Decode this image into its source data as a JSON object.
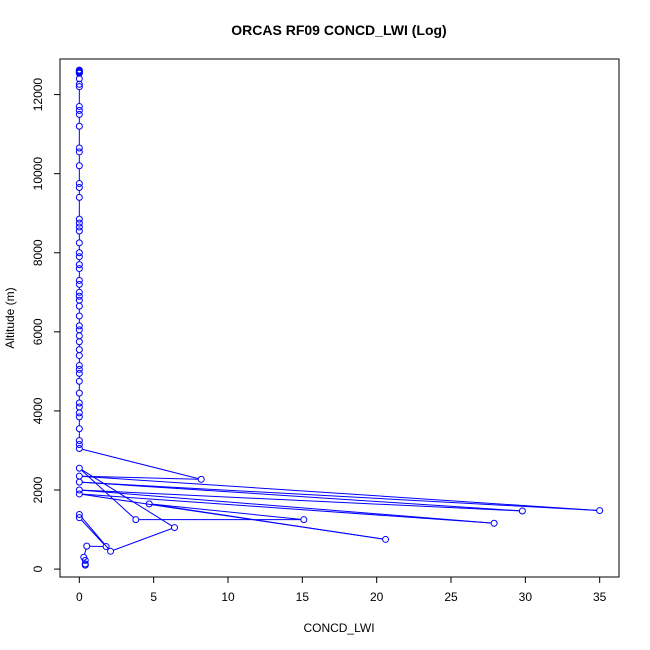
{
  "chart_data": {
    "type": "line",
    "title": "ORCAS RF09 CONCD_LWI (Log)",
    "xlabel": "CONCD_LWI",
    "ylabel": "Altitude (m)",
    "xlim": [
      -1.3,
      36.3
    ],
    "ylim": [
      -200,
      12900
    ],
    "xticks": [
      0,
      5,
      10,
      15,
      20,
      25,
      30,
      35
    ],
    "yticks": [
      0,
      2000,
      4000,
      6000,
      8000,
      10000,
      12000
    ],
    "series_color": "#0000ff",
    "grid": false,
    "legend": "none",
    "series": [
      {
        "values": [
          {
            "x": 0,
            "y": 12620
          },
          {
            "x": 0,
            "y": 12600
          },
          {
            "x": 0,
            "y": 12580
          },
          {
            "x": 0,
            "y": 12560
          },
          {
            "x": 0,
            "y": 12540
          },
          {
            "x": 0,
            "y": 12400
          },
          {
            "x": 0,
            "y": 12260
          },
          {
            "x": 0,
            "y": 12200
          },
          {
            "x": 0,
            "y": 11700
          },
          {
            "x": 0,
            "y": 11600
          },
          {
            "x": 0,
            "y": 11500
          },
          {
            "x": 0,
            "y": 11200
          },
          {
            "x": 0,
            "y": 10650
          },
          {
            "x": 0,
            "y": 10550
          },
          {
            "x": 0,
            "y": 10200
          },
          {
            "x": 0,
            "y": 9750
          },
          {
            "x": 0,
            "y": 9650
          },
          {
            "x": 0,
            "y": 9400
          },
          {
            "x": 0,
            "y": 8850
          },
          {
            "x": 0,
            "y": 8750
          },
          {
            "x": 0,
            "y": 8650
          },
          {
            "x": 0,
            "y": 8550
          },
          {
            "x": 0,
            "y": 8250
          },
          {
            "x": 0,
            "y": 8000
          },
          {
            "x": 0,
            "y": 7900
          },
          {
            "x": 0,
            "y": 7700
          },
          {
            "x": 0,
            "y": 7600
          },
          {
            "x": 0,
            "y": 7300
          },
          {
            "x": 0,
            "y": 7200
          },
          {
            "x": 0,
            "y": 7000
          },
          {
            "x": 0,
            "y": 6900
          },
          {
            "x": 0,
            "y": 6800
          },
          {
            "x": 0,
            "y": 6650
          },
          {
            "x": 0,
            "y": 6400
          },
          {
            "x": 0,
            "y": 6150
          },
          {
            "x": 0,
            "y": 6050
          },
          {
            "x": 0,
            "y": 5900
          },
          {
            "x": 0,
            "y": 5750
          },
          {
            "x": 0,
            "y": 5550
          },
          {
            "x": 0,
            "y": 5400
          },
          {
            "x": 0,
            "y": 5150
          },
          {
            "x": 0,
            "y": 5050
          },
          {
            "x": 0,
            "y": 4950
          },
          {
            "x": 0,
            "y": 4750
          },
          {
            "x": 0,
            "y": 4450
          },
          {
            "x": 0,
            "y": 4200
          },
          {
            "x": 0,
            "y": 4100
          },
          {
            "x": 0,
            "y": 3950
          },
          {
            "x": 0,
            "y": 3850
          },
          {
            "x": 0,
            "y": 3550
          },
          {
            "x": 0,
            "y": 3250
          },
          {
            "x": 0,
            "y": 3150
          },
          {
            "x": 0,
            "y": 3050
          },
          {
            "x": 8.2,
            "y": 2270
          },
          {
            "x": 0,
            "y": 2350
          },
          {
            "x": 35.0,
            "y": 1480
          },
          {
            "x": 0,
            "y": 2200
          },
          {
            "x": 29.8,
            "y": 1470
          },
          {
            "x": 0,
            "y": 2000
          },
          {
            "x": 27.9,
            "y": 1160
          },
          {
            "x": 0,
            "y": 1900
          },
          {
            "x": 20.6,
            "y": 750
          },
          {
            "x": 4.7,
            "y": 1650
          },
          {
            "x": 15.1,
            "y": 1250
          },
          {
            "x": 3.8,
            "y": 1250
          },
          {
            "x": 0,
            "y": 2550
          },
          {
            "x": 6.4,
            "y": 1050
          },
          {
            "x": 2.1,
            "y": 450
          },
          {
            "x": 0,
            "y": 1380
          },
          {
            "x": 0,
            "y": 1300
          },
          {
            "x": 1.8,
            "y": 570
          },
          {
            "x": 0.5,
            "y": 580
          },
          {
            "x": 0.3,
            "y": 300
          },
          {
            "x": 0.4,
            "y": 220
          },
          {
            "x": 0.4,
            "y": 130
          },
          {
            "x": 0.4,
            "y": 100
          }
        ]
      }
    ]
  }
}
